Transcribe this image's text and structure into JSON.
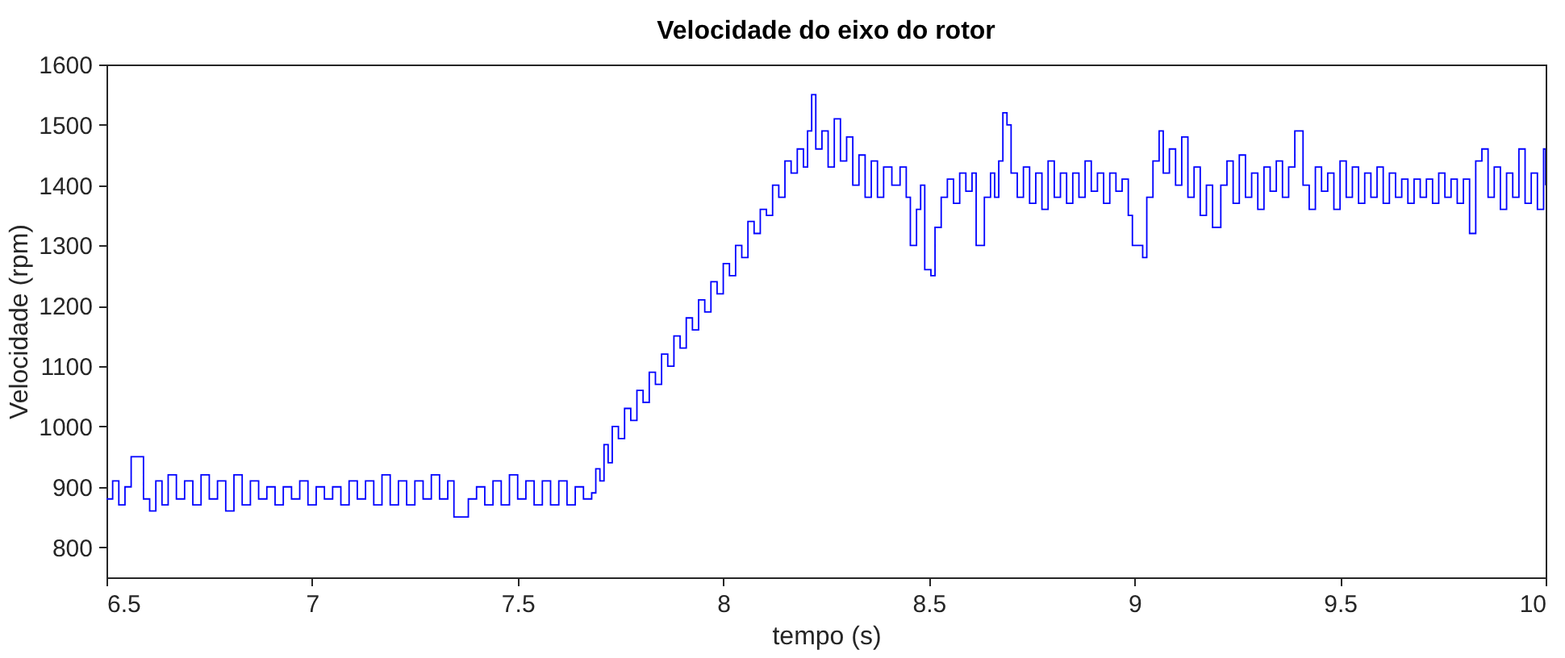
{
  "chart_data": {
    "type": "step",
    "title": "Velocidade do eixo do rotor",
    "xlabel": "tempo (s)",
    "ylabel": "Velocidade (rpm)",
    "xlim": [
      6.5,
      10
    ],
    "xticks": [
      6.5,
      7,
      7.5,
      8,
      8.5,
      9,
      9.5,
      10
    ],
    "ylim": [
      750,
      1600
    ],
    "yticks": [
      800,
      900,
      1000,
      1100,
      1200,
      1300,
      1400,
      1500,
      1600
    ],
    "series": [
      {
        "color": "#0000ff",
        "x": [
          6.5,
          6.515,
          6.53,
          6.545,
          6.56,
          6.585,
          6.59,
          6.605,
          6.62,
          6.635,
          6.65,
          6.67,
          6.69,
          6.71,
          6.73,
          6.75,
          6.77,
          6.79,
          6.81,
          6.83,
          6.85,
          6.87,
          6.89,
          6.91,
          6.93,
          6.95,
          6.97,
          6.99,
          7.01,
          7.03,
          7.05,
          7.07,
          7.09,
          7.11,
          7.13,
          7.15,
          7.17,
          7.19,
          7.21,
          7.23,
          7.25,
          7.27,
          7.29,
          7.31,
          7.33,
          7.345,
          7.37,
          7.38,
          7.4,
          7.42,
          7.44,
          7.46,
          7.48,
          7.5,
          7.52,
          7.54,
          7.56,
          7.58,
          7.6,
          7.62,
          7.64,
          7.66,
          7.68,
          7.69,
          7.7,
          7.71,
          7.72,
          7.73,
          7.745,
          7.76,
          7.775,
          7.79,
          7.805,
          7.82,
          7.835,
          7.85,
          7.865,
          7.88,
          7.895,
          7.91,
          7.925,
          7.94,
          7.955,
          7.97,
          7.985,
          8.0,
          8.015,
          8.03,
          8.045,
          8.06,
          8.075,
          8.09,
          8.105,
          8.12,
          8.135,
          8.15,
          8.165,
          8.18,
          8.195,
          8.205,
          8.215,
          8.225,
          8.24,
          8.255,
          8.27,
          8.285,
          8.3,
          8.315,
          8.33,
          8.345,
          8.36,
          8.375,
          8.39,
          8.41,
          8.43,
          8.445,
          8.455,
          8.47,
          8.48,
          8.49,
          8.505,
          8.515,
          8.53,
          8.545,
          8.56,
          8.575,
          8.59,
          8.605,
          8.615,
          8.635,
          8.65,
          8.66,
          8.67,
          8.68,
          8.69,
          8.7,
          8.715,
          8.73,
          8.745,
          8.76,
          8.775,
          8.79,
          8.805,
          8.82,
          8.835,
          8.85,
          8.865,
          8.88,
          8.895,
          8.91,
          8.925,
          8.94,
          8.955,
          8.97,
          8.985,
          8.995,
          9.02,
          9.03,
          9.045,
          9.06,
          9.07,
          9.085,
          9.1,
          9.115,
          9.13,
          9.145,
          9.16,
          9.175,
          9.19,
          9.21,
          9.225,
          9.24,
          9.255,
          9.27,
          9.285,
          9.3,
          9.315,
          9.33,
          9.345,
          9.36,
          9.375,
          9.39,
          9.41,
          9.425,
          9.44,
          9.455,
          9.47,
          9.485,
          9.5,
          9.515,
          9.53,
          9.545,
          9.56,
          9.575,
          9.59,
          9.605,
          9.62,
          9.635,
          9.65,
          9.665,
          9.68,
          9.695,
          9.71,
          9.725,
          9.74,
          9.755,
          9.77,
          9.785,
          9.8,
          9.815,
          9.83,
          9.845,
          9.86,
          9.875,
          9.89,
          9.905,
          9.92,
          9.935,
          9.95,
          9.965,
          9.98,
          9.995,
          10
        ],
        "values": [
          880,
          910,
          870,
          900,
          950,
          950,
          880,
          860,
          910,
          870,
          920,
          880,
          910,
          870,
          920,
          880,
          910,
          860,
          920,
          870,
          910,
          880,
          900,
          870,
          900,
          880,
          910,
          870,
          900,
          880,
          900,
          870,
          910,
          880,
          910,
          870,
          920,
          870,
          910,
          870,
          910,
          880,
          920,
          880,
          910,
          850,
          850,
          880,
          900,
          870,
          910,
          870,
          920,
          880,
          910,
          870,
          910,
          870,
          910,
          870,
          900,
          880,
          890,
          930,
          910,
          970,
          940,
          1000,
          980,
          1030,
          1010,
          1060,
          1040,
          1090,
          1070,
          1120,
          1100,
          1150,
          1130,
          1180,
          1160,
          1210,
          1190,
          1240,
          1220,
          1270,
          1250,
          1300,
          1280,
          1340,
          1320,
          1360,
          1350,
          1400,
          1380,
          1440,
          1420,
          1460,
          1430,
          1490,
          1550,
          1460,
          1490,
          1430,
          1510,
          1440,
          1480,
          1400,
          1450,
          1380,
          1440,
          1380,
          1430,
          1400,
          1430,
          1380,
          1300,
          1360,
          1400,
          1260,
          1250,
          1330,
          1380,
          1410,
          1370,
          1420,
          1390,
          1420,
          1300,
          1380,
          1420,
          1380,
          1440,
          1520,
          1500,
          1420,
          1380,
          1430,
          1370,
          1420,
          1360,
          1440,
          1380,
          1420,
          1370,
          1420,
          1380,
          1440,
          1390,
          1420,
          1370,
          1420,
          1390,
          1410,
          1350,
          1300,
          1280,
          1380,
          1440,
          1490,
          1420,
          1460,
          1400,
          1480,
          1380,
          1430,
          1350,
          1400,
          1330,
          1400,
          1440,
          1370,
          1450,
          1380,
          1420,
          1360,
          1430,
          1390,
          1440,
          1380,
          1430,
          1490,
          1400,
          1360,
          1430,
          1390,
          1420,
          1360,
          1440,
          1380,
          1430,
          1370,
          1420,
          1380,
          1430,
          1370,
          1420,
          1380,
          1410,
          1370,
          1410,
          1380,
          1410,
          1370,
          1420,
          1380,
          1410,
          1370,
          1410,
          1320,
          1440,
          1460,
          1380,
          1430,
          1360,
          1420,
          1380,
          1460,
          1370,
          1420,
          1360,
          1460,
          1400
        ]
      }
    ]
  }
}
